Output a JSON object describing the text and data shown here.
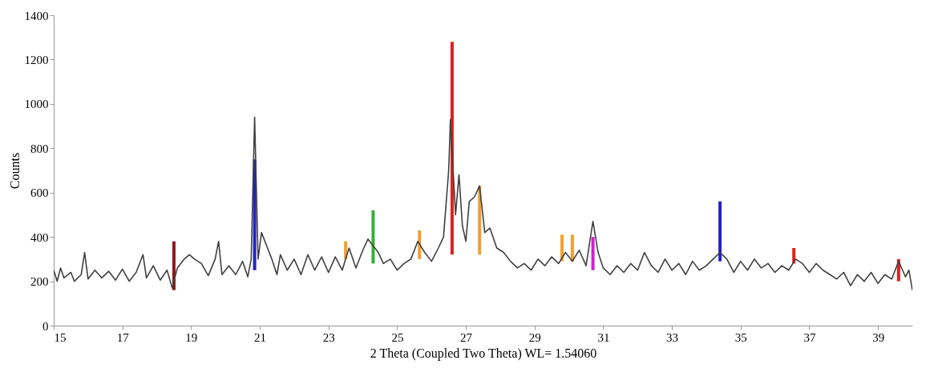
{
  "chart_data": {
    "type": "line",
    "xlabel": "2 Theta (Coupled Two Theta) WL= 1.54060",
    "ylabel": "Counts",
    "xlim": [
      15,
      40
    ],
    "ylim": [
      0,
      1400
    ],
    "xticks": [
      15,
      17,
      19,
      21,
      23,
      25,
      27,
      29,
      31,
      33,
      35,
      37,
      39
    ],
    "yticks": [
      0,
      200,
      400,
      600,
      800,
      1000,
      1200,
      1400
    ],
    "grid": false,
    "marker": "none",
    "line_style": "solid",
    "series": [
      {
        "type": "bar",
        "color": "#8b1a1a",
        "x": [
          18.5
        ],
        "base": [
          160
        ],
        "values": [
          220
        ]
      },
      {
        "type": "bar",
        "color": "#2222c8",
        "x": [
          20.85,
          34.4
        ],
        "base": [
          250,
          290
        ],
        "values": [
          500,
          270
        ]
      },
      {
        "type": "bar",
        "color": "#33b233",
        "x": [
          24.3
        ],
        "base": [
          280
        ],
        "values": [
          240
        ]
      },
      {
        "type": "bar",
        "color": "#e02020",
        "x": [
          26.6,
          36.55,
          39.6
        ],
        "base": [
          320,
          280,
          200
        ],
        "values": [
          960,
          70,
          100
        ]
      },
      {
        "type": "bar",
        "color": "#f0a030",
        "x": [
          23.5,
          25.65,
          27.4,
          29.8,
          30.1
        ],
        "base": [
          300,
          300,
          320,
          290,
          290
        ],
        "values": [
          80,
          130,
          310,
          120,
          120
        ]
      },
      {
        "type": "bar",
        "color": "#d020d0",
        "x": [
          30.7
        ],
        "base": [
          250
        ],
        "values": [
          150
        ]
      },
      {
        "color": "#404040",
        "x": [
          15.0,
          15.1,
          15.2,
          15.3,
          15.5,
          15.6,
          15.8,
          15.9,
          16.0,
          16.2,
          16.4,
          16.6,
          16.8,
          17.0,
          17.2,
          17.4,
          17.6,
          17.7,
          17.9,
          18.1,
          18.3,
          18.45,
          18.6,
          18.8,
          18.95,
          19.1,
          19.3,
          19.5,
          19.7,
          19.8,
          19.9,
          20.1,
          20.3,
          20.5,
          20.65,
          20.75,
          20.85,
          20.95,
          21.05,
          21.2,
          21.35,
          21.5,
          21.6,
          21.8,
          22.0,
          22.2,
          22.4,
          22.6,
          22.8,
          23.0,
          23.2,
          23.4,
          23.6,
          23.8,
          24.0,
          24.15,
          24.3,
          24.45,
          24.6,
          24.8,
          25.0,
          25.2,
          25.4,
          25.6,
          25.8,
          26.0,
          26.2,
          26.35,
          26.5,
          26.55,
          26.7,
          26.8,
          26.9,
          27.0,
          27.1,
          27.25,
          27.4,
          27.55,
          27.7,
          27.9,
          28.1,
          28.3,
          28.5,
          28.7,
          28.9,
          29.1,
          29.3,
          29.5,
          29.7,
          29.9,
          30.1,
          30.3,
          30.5,
          30.7,
          30.85,
          31.0,
          31.2,
          31.4,
          31.6,
          31.8,
          32.0,
          32.2,
          32.4,
          32.6,
          32.8,
          33.0,
          33.2,
          33.4,
          33.6,
          33.8,
          34.0,
          34.2,
          34.4,
          34.6,
          34.8,
          35.0,
          35.2,
          35.4,
          35.6,
          35.8,
          36.0,
          36.2,
          36.4,
          36.6,
          36.8,
          37.0,
          37.2,
          37.4,
          37.6,
          37.8,
          38.0,
          38.2,
          38.4,
          38.6,
          38.8,
          39.0,
          39.2,
          39.4,
          39.6,
          39.8,
          39.9,
          40.0
        ],
        "values": [
          250,
          200,
          260,
          215,
          240,
          200,
          230,
          330,
          210,
          250,
          215,
          245,
          205,
          255,
          200,
          240,
          320,
          215,
          270,
          205,
          250,
          170,
          260,
          300,
          320,
          300,
          280,
          225,
          300,
          380,
          230,
          270,
          230,
          290,
          220,
          300,
          940,
          300,
          420,
          360,
          300,
          230,
          320,
          250,
          300,
          230,
          320,
          250,
          310,
          240,
          310,
          250,
          350,
          260,
          340,
          390,
          360,
          330,
          280,
          300,
          250,
          280,
          300,
          380,
          330,
          290,
          350,
          400,
          700,
          930,
          500,
          680,
          450,
          380,
          560,
          580,
          630,
          420,
          440,
          350,
          330,
          290,
          260,
          280,
          250,
          300,
          270,
          310,
          280,
          330,
          290,
          340,
          270,
          470,
          330,
          260,
          230,
          270,
          240,
          280,
          250,
          330,
          270,
          240,
          300,
          250,
          280,
          230,
          290,
          250,
          270,
          300,
          330,
          300,
          240,
          290,
          250,
          300,
          260,
          280,
          240,
          270,
          250,
          300,
          280,
          240,
          280,
          250,
          230,
          210,
          240,
          180,
          230,
          200,
          240,
          190,
          230,
          210,
          290,
          220,
          250,
          160
        ]
      }
    ]
  }
}
